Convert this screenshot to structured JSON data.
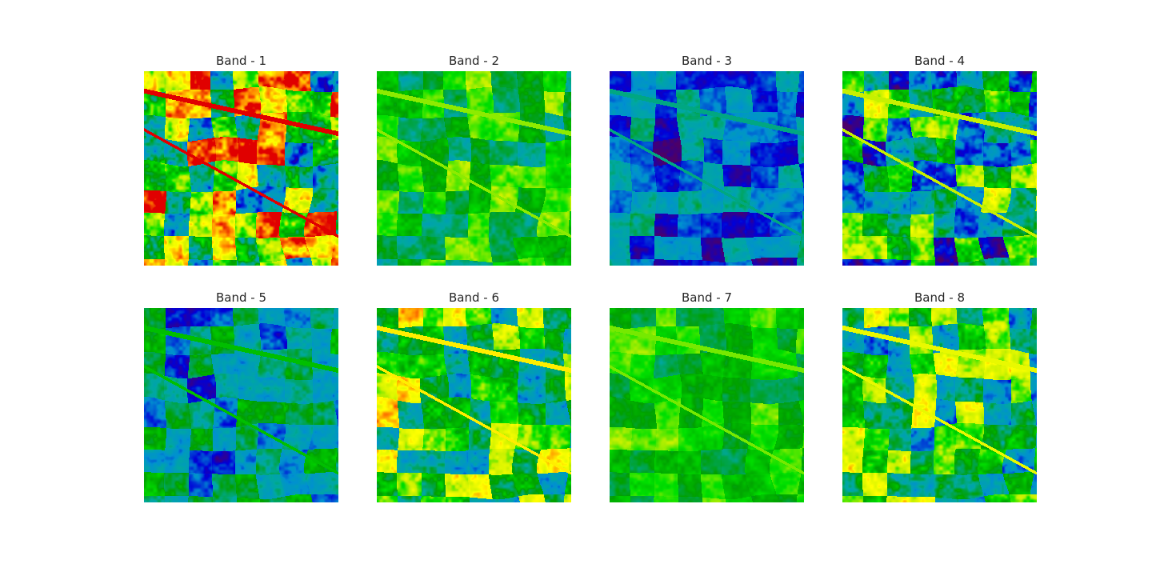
{
  "figure": {
    "colormap": [
      "#4b0068",
      "#0000d8",
      "#0090d0",
      "#00a8a0",
      "#00a000",
      "#00e000",
      "#c8f000",
      "#ffff00",
      "#ff8800",
      "#e00000"
    ],
    "panels": [
      {
        "title": "Band - 1",
        "level": 0.62,
        "contrast": 0.35
      },
      {
        "title": "Band - 2",
        "level": 0.48,
        "contrast": 0.14
      },
      {
        "title": "Band - 3",
        "level": 0.2,
        "contrast": 0.14
      },
      {
        "title": "Band - 4",
        "level": 0.38,
        "contrast": 0.26
      },
      {
        "title": "Band - 5",
        "level": 0.31,
        "contrast": 0.17
      },
      {
        "title": "Band - 6",
        "level": 0.53,
        "contrast": 0.24
      },
      {
        "title": "Band - 7",
        "level": 0.5,
        "contrast": 0.11
      },
      {
        "title": "Band - 8",
        "level": 0.47,
        "contrast": 0.24
      }
    ]
  }
}
